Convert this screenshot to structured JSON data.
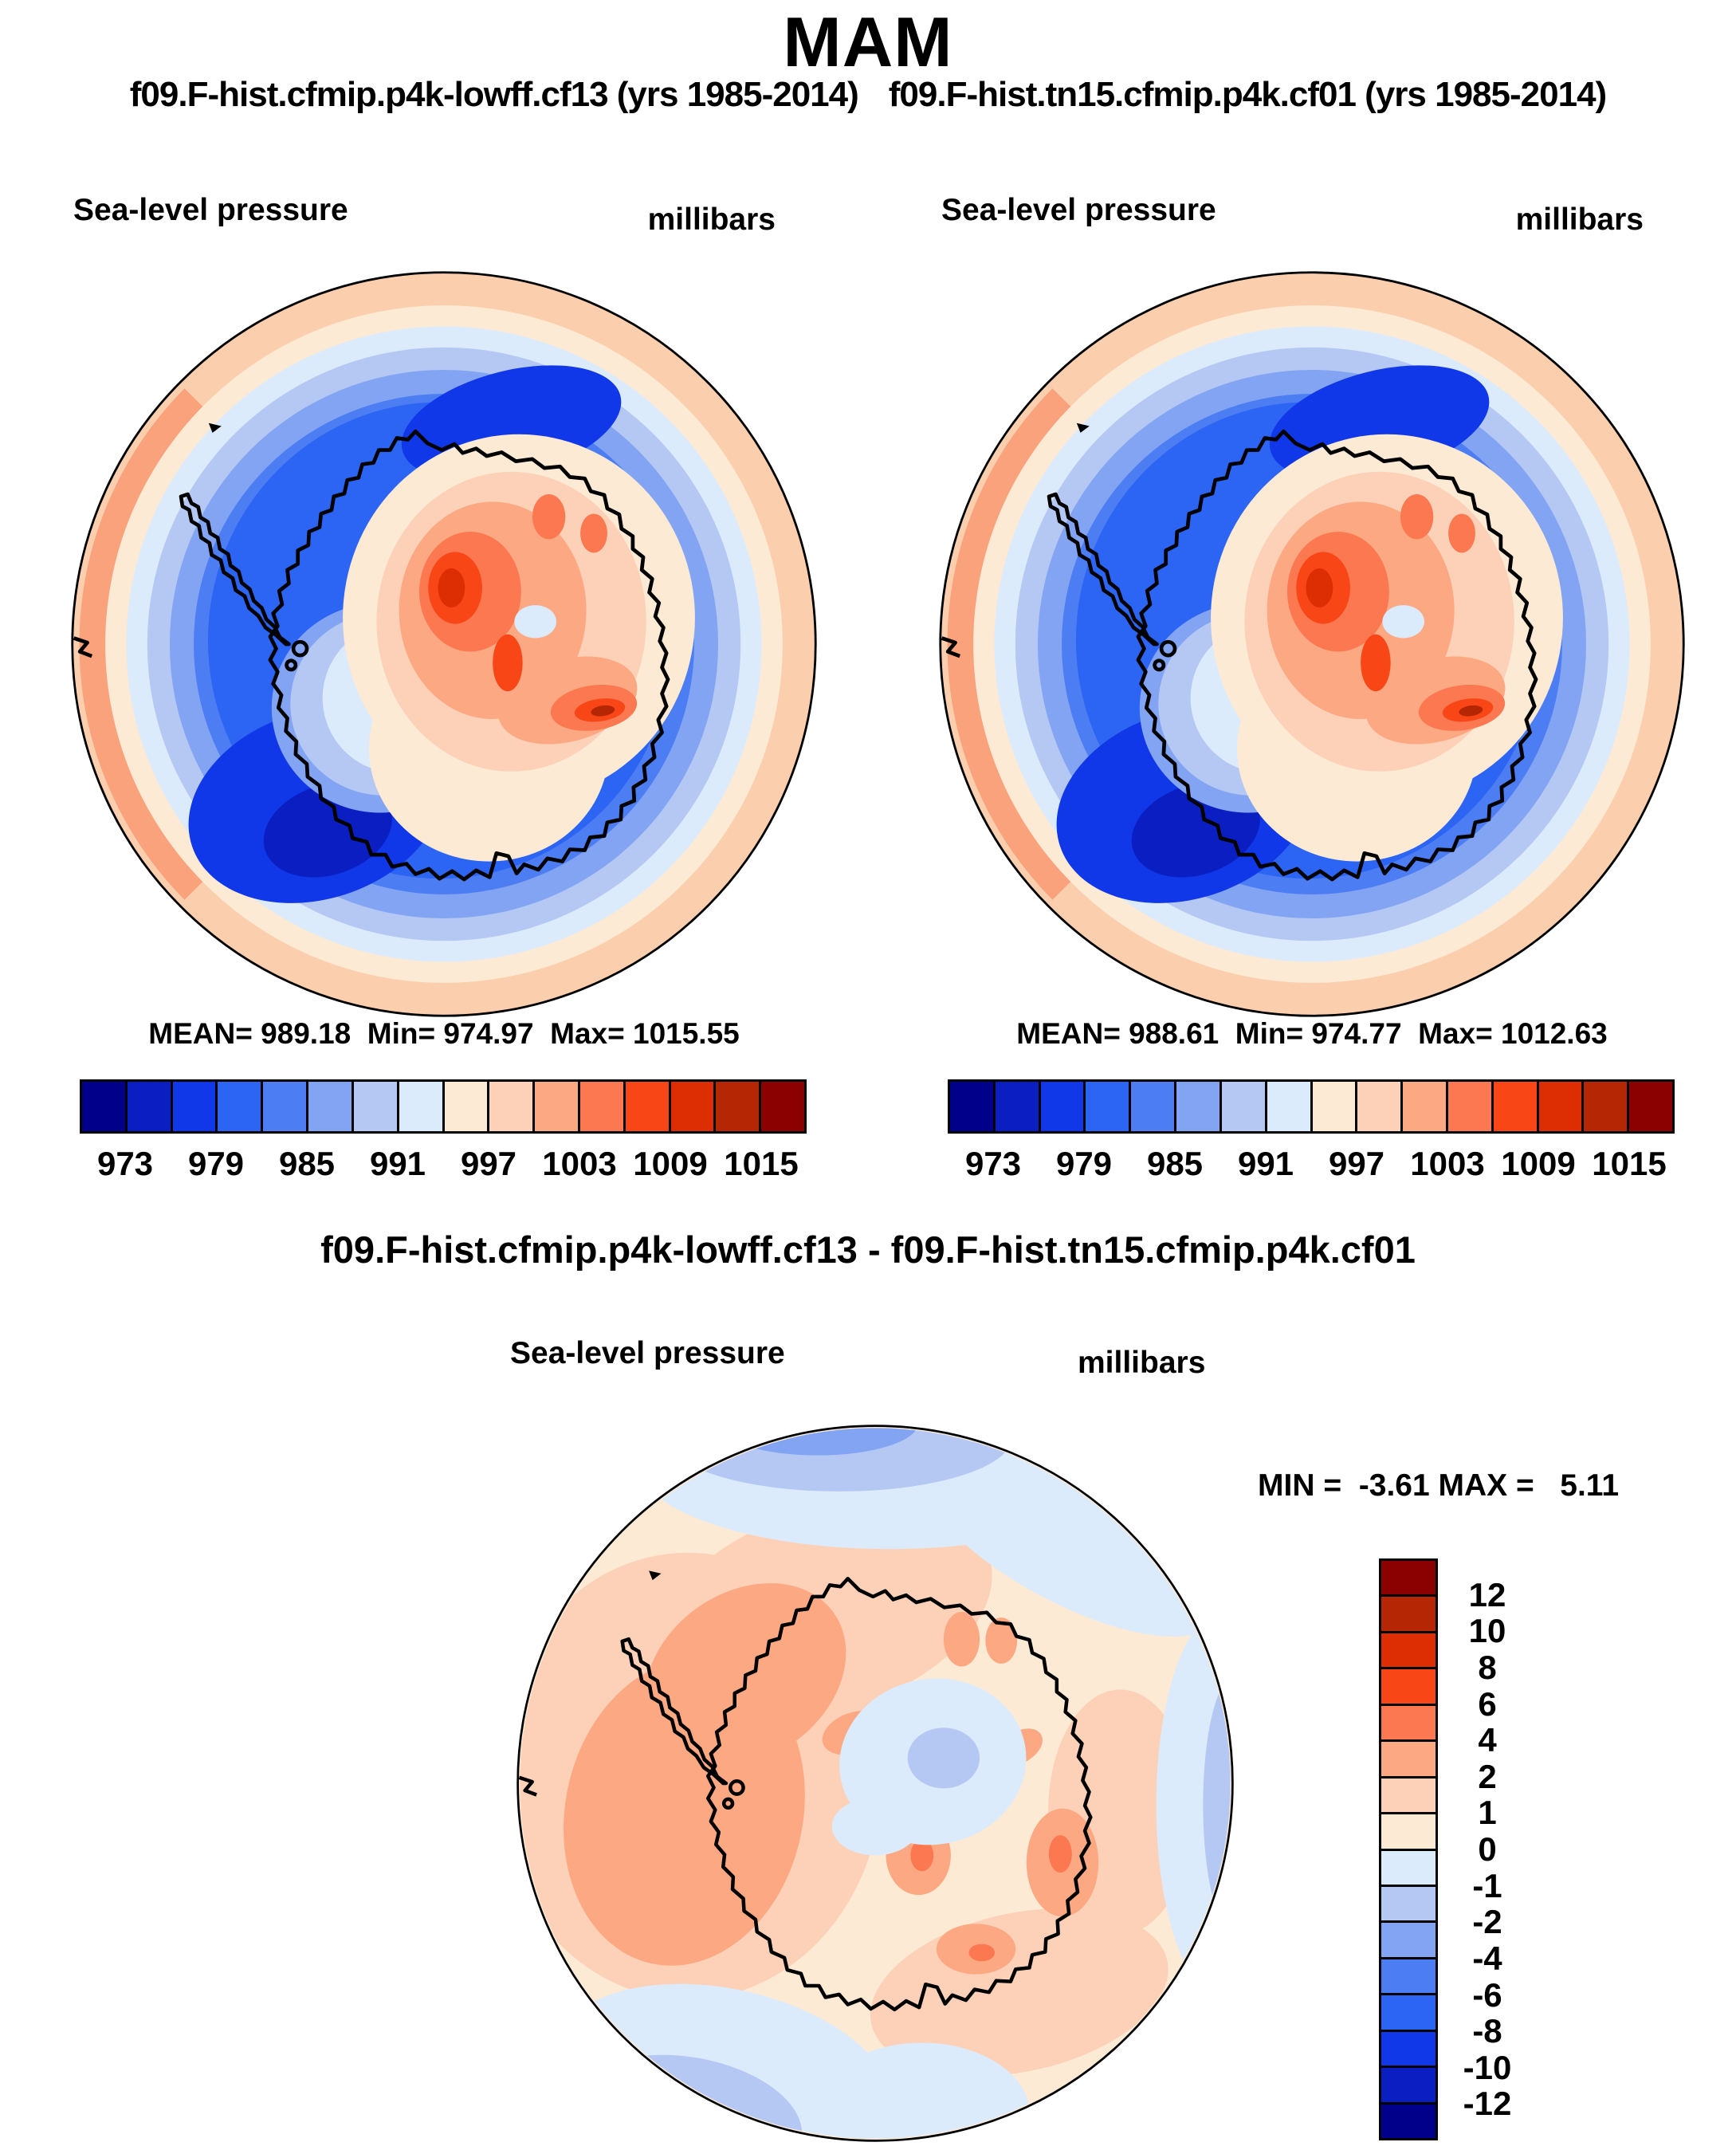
{
  "title": "MAM",
  "subtitle": {
    "left": "f09.F-hist.cfmip.p4k-lowff.cf13 (yrs 1985-2014)",
    "right": "f09.F-hist.tn15.cfmip.p4k.cf01 (yrs 1985-2014)"
  },
  "panels": [
    {
      "field_label": "Sea-level pressure",
      "units": "millibars",
      "stats": "MEAN= 989.18  Min= 974.97  Max= 1015.55"
    },
    {
      "field_label": "Sea-level pressure",
      "units": "millibars",
      "stats": "MEAN= 988.61  Min= 974.77  Max= 1012.63"
    }
  ],
  "difference": {
    "title": "f09.F-hist.cfmip.p4k-lowff.cf13 - f09.F-hist.tn15.cfmip.p4k.cf01",
    "field_label": "Sea-level pressure",
    "units": "millibars",
    "stats": "MIN =  -3.61 MAX =   5.11"
  },
  "colorbar": {
    "colors_blue_to_red": [
      "#00008B",
      "#0A1EC2",
      "#1038E8",
      "#2C64F4",
      "#4D7DF2",
      "#82A4F2",
      "#B5C8F4",
      "#DCEBFB",
      "#FDEAD5",
      "#FCD1B8",
      "#FCA983",
      "#FB7850",
      "#F94616",
      "#DD2D03",
      "#B52604",
      "#8B0000"
    ],
    "top_ticks": [
      "973",
      "979",
      "985",
      "991",
      "997",
      "1003",
      "1009",
      "1015"
    ],
    "diff_ticks": [
      "12",
      "10",
      "8",
      "6",
      "4",
      "2",
      "1",
      "0",
      "-1",
      "-2",
      "-4",
      "-6",
      "-8",
      "-10",
      "-12"
    ]
  },
  "chart_data": [
    {
      "type": "heatmap",
      "subtype": "filled-contour polar map",
      "title": "f09.F-hist.cfmip.p4k-lowff.cf13 (yrs 1985-2014)",
      "season": "MAM",
      "variable": "Sea-level pressure",
      "units": "millibars",
      "projection": "south polar stereographic (Antarctica centered)",
      "mean": 989.18,
      "min": 974.97,
      "max": 1015.55,
      "contour_levels": [
        973,
        976,
        979,
        982,
        985,
        988,
        991,
        994,
        997,
        1000,
        1003,
        1006,
        1009,
        1012,
        1015
      ],
      "labeled_levels": [
        973,
        979,
        985,
        991,
        997,
        1003,
        1009,
        1015
      ],
      "palette_blue_to_red": [
        "#00008B",
        "#0A1EC2",
        "#1038E8",
        "#2C64F4",
        "#4D7DF2",
        "#82A4F2",
        "#B5C8F4",
        "#DCEBFB",
        "#FDEAD5",
        "#FCD1B8",
        "#FCA983",
        "#FB7850",
        "#F94616",
        "#DD2D03",
        "#B52604",
        "#8B0000"
      ],
      "legend_position": "horizontal bar below map",
      "description": "Low pressure ring (973-985 mb) over Southern Ocean circumpolar trough, high pressure (997-1015 mb) over East Antarctic plateau and at subtropical map edge"
    },
    {
      "type": "heatmap",
      "subtype": "filled-contour polar map",
      "title": "f09.F-hist.tn15.cfmip.p4k.cf01 (yrs 1985-2014)",
      "season": "MAM",
      "variable": "Sea-level pressure",
      "units": "millibars",
      "projection": "south polar stereographic (Antarctica centered)",
      "mean": 988.61,
      "min": 974.77,
      "max": 1012.63,
      "contour_levels": [
        973,
        976,
        979,
        982,
        985,
        988,
        991,
        994,
        997,
        1000,
        1003,
        1006,
        1009,
        1012,
        1015
      ],
      "labeled_levels": [
        973,
        979,
        985,
        991,
        997,
        1003,
        1009,
        1015
      ],
      "palette_blue_to_red": [
        "#00008B",
        "#0A1EC2",
        "#1038E8",
        "#2C64F4",
        "#4D7DF2",
        "#82A4F2",
        "#B5C8F4",
        "#DCEBFB",
        "#FDEAD5",
        "#FCD1B8",
        "#FCA983",
        "#FB7850",
        "#F94616",
        "#DD2D03",
        "#B52604",
        "#8B0000"
      ],
      "legend_position": "horizontal bar below map",
      "description": "Same spatial pattern as first case with slightly weaker plateau high (max 1012.63)"
    },
    {
      "type": "heatmap",
      "subtype": "filled-contour polar difference map",
      "title": "f09.F-hist.cfmip.p4k-lowff.cf13 - f09.F-hist.tn15.cfmip.p4k.cf01",
      "season": "MAM",
      "variable": "Sea-level pressure difference",
      "units": "millibars",
      "projection": "south polar stereographic (Antarctica centered)",
      "min": -3.61,
      "max": 5.11,
      "contour_levels": [
        -12,
        -10,
        -8,
        -6,
        -4,
        -2,
        -1,
        0,
        1,
        2,
        4,
        6,
        8,
        10,
        12
      ],
      "palette_red_top_to_blue_bottom": [
        "#8B0000",
        "#B52604",
        "#DD2D03",
        "#F94616",
        "#FB7850",
        "#FCA983",
        "#FCD1B8",
        "#FDEAD5",
        "#DCEBFB",
        "#B5C8F4",
        "#82A4F2",
        "#4D7DF2",
        "#2C64F4",
        "#1038E8",
        "#0A1EC2",
        "#00008B"
      ],
      "legend_position": "vertical bar at right",
      "description": "Mostly weak positive differences (0 to +4 mb) with strongest positive anomaly over Amundsen/Bellingshausen Seas; weak negative bands (0 to -4 mb) at northern map edge and over East Antarctic plateau interior"
    }
  ]
}
